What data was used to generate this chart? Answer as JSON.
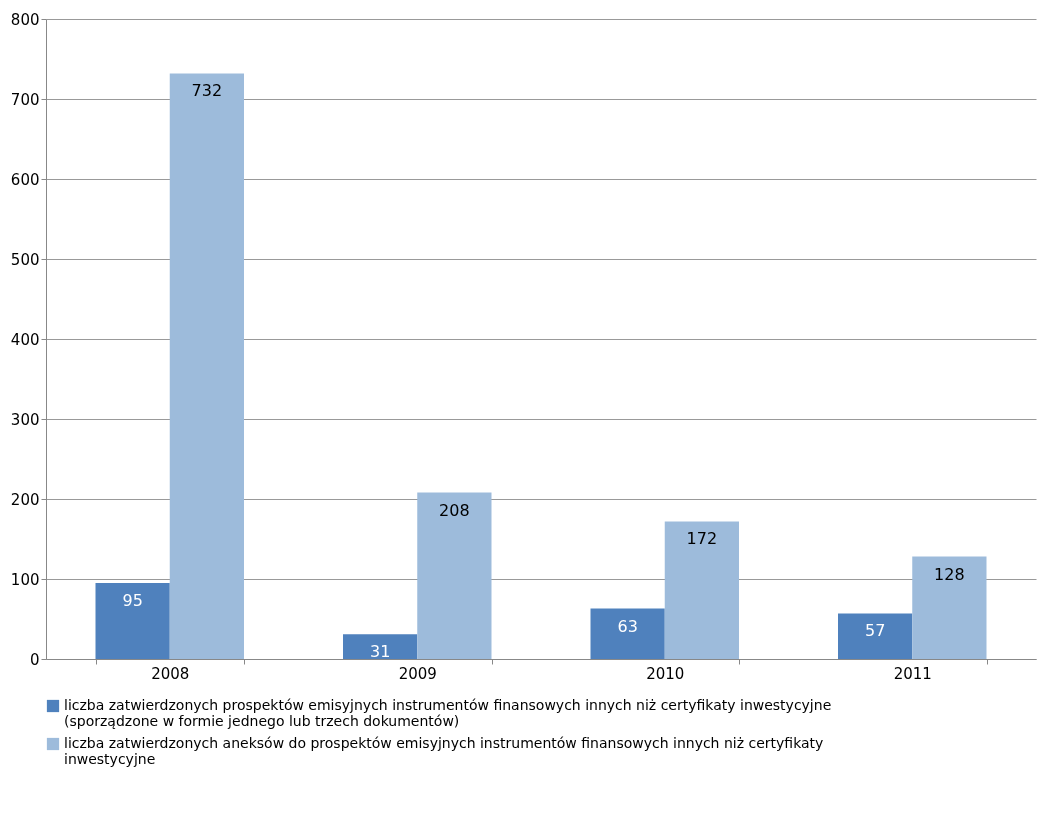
{
  "chart_data": {
    "type": "bar",
    "categories": [
      "2008",
      "2009",
      "2010",
      "2011"
    ],
    "series": [
      {
        "name": "liczba zatwierdzonych prospektów emisyjnych instrumentów finansowych innych niż certyfikaty inwestycyjne (sporządzone w formie jednego lub trzech dokumentów)",
        "color": "#4f81bd",
        "values": [
          95,
          31,
          63,
          57
        ]
      },
      {
        "name": "liczba zatwierdzonych aneksów do prospektów emisyjnych instrumentów finansowych innych niż certyfikaty inwestycyjne",
        "color": "#9dbbdb",
        "values": [
          732,
          208,
          172,
          128
        ]
      }
    ],
    "ylim": [
      0,
      800
    ],
    "yticks": [
      0,
      100,
      200,
      300,
      400,
      500,
      600,
      700,
      800
    ],
    "grid": "y",
    "legend": "bottom",
    "data_labels": true
  }
}
